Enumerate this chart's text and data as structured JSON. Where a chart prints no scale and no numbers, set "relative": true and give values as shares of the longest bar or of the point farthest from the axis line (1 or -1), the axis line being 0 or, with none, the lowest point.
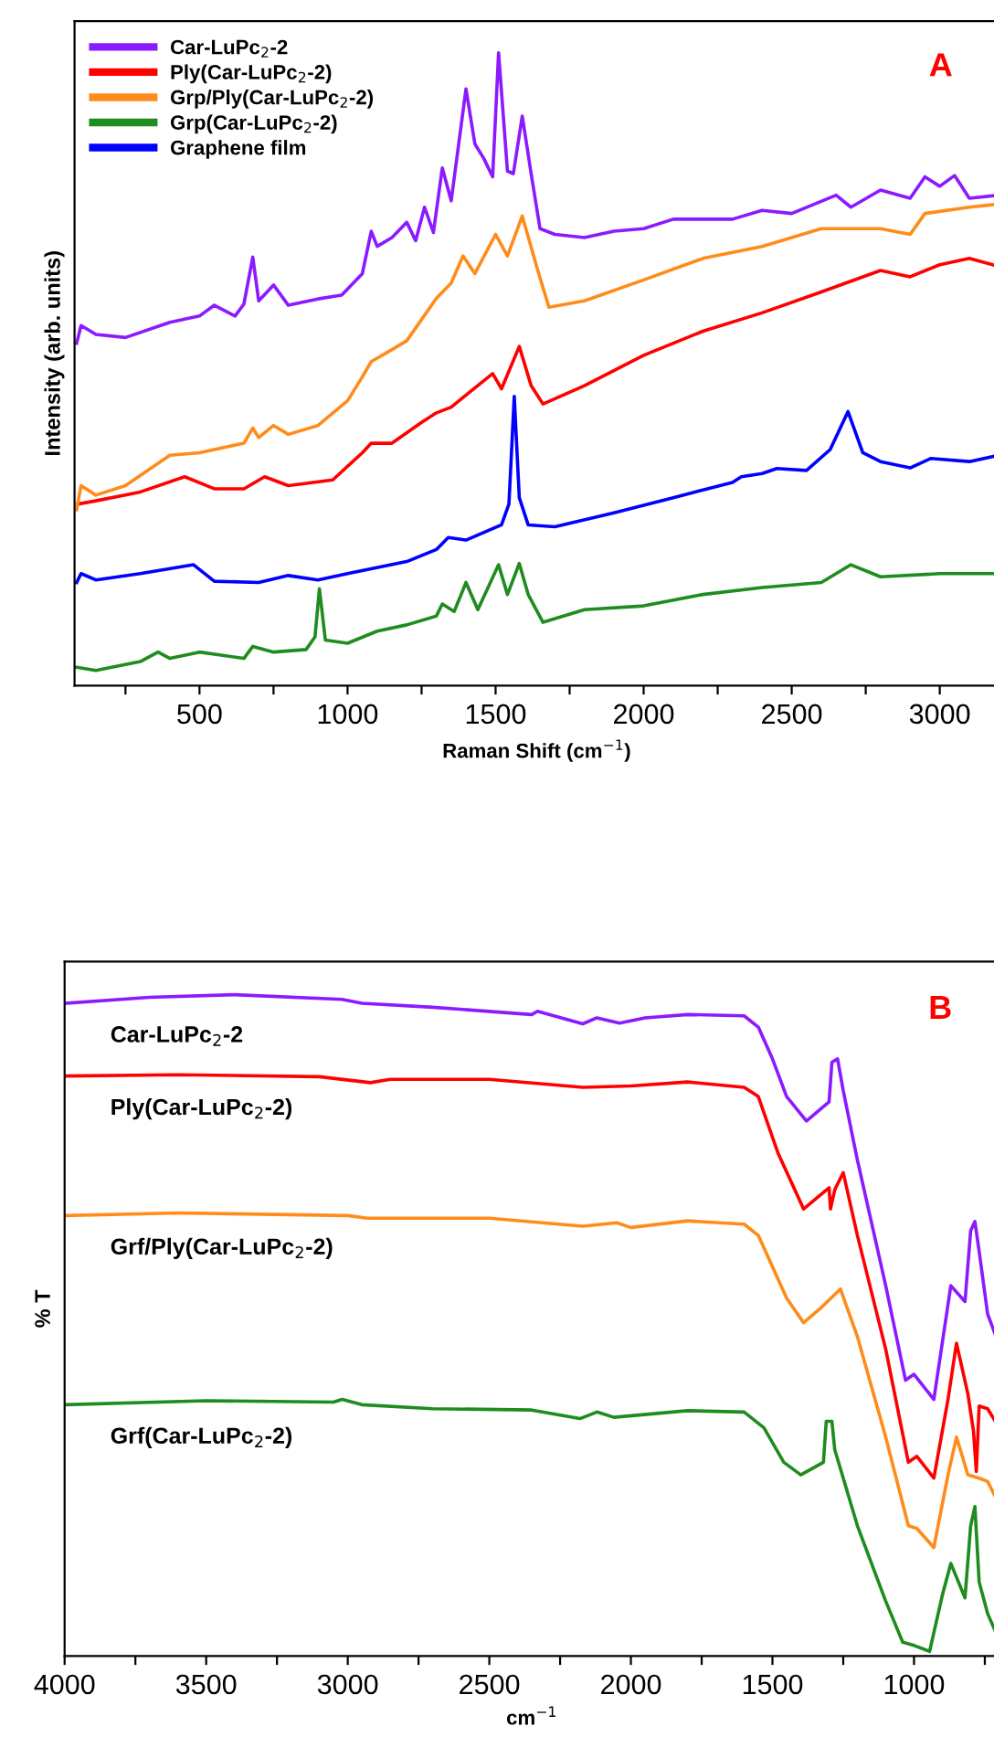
{
  "chart_data": [
    {
      "type": "line",
      "relative": true,
      "xlabel": "Raman Shift (cm$^{−1}$)",
      "ylabel": "Intensity (arb. units)",
      "annotations": [
        "A"
      ],
      "legend": "top left",
      "grid": false,
      "xlim": [
        78,
        3200
      ],
      "xticks": [
        {
          "value": 250,
          "label": null
        },
        500,
        {
          "value": 750,
          "label": null
        },
        1000,
        {
          "value": 1250,
          "label": null
        },
        1500,
        {
          "value": 1750,
          "label": null
        },
        2000,
        {
          "value": 2250,
          "label": null
        },
        2500,
        {
          "value": 2750,
          "label": null
        },
        3000
      ],
      "series": [
        {
          "name": "Car-LuPc$_{2}$-2",
          "color": "#8c1aff",
          "x": [
            85,
            100,
            150,
            250,
            400,
            500,
            550,
            620,
            650,
            680,
            700,
            750,
            800,
            900,
            980,
            1050,
            1080,
            1100,
            1150,
            1200,
            1230,
            1260,
            1290,
            1320,
            1350,
            1400,
            1430,
            1460,
            1490,
            1510,
            1540,
            1560,
            1590,
            1620,
            1650,
            1700,
            1800,
            1900,
            2000,
            2100,
            2200,
            2300,
            2400,
            2500,
            2650,
            2700,
            2800,
            2900,
            2950,
            3000,
            3050,
            3100,
            3200
          ],
          "values": [
            0.541,
            0.569,
            0.555,
            0.55,
            0.574,
            0.584,
            0.601,
            0.584,
            0.603,
            0.677,
            0.608,
            0.633,
            0.601,
            0.611,
            0.617,
            0.651,
            0.718,
            0.694,
            0.708,
            0.732,
            0.703,
            0.756,
            0.716,
            0.818,
            0.766,
            0.943,
            0.856,
            0.833,
            0.804,
            1.0,
            0.813,
            0.809,
            0.9,
            0.809,
            0.722,
            0.713,
            0.708,
            0.718,
            0.722,
            0.737,
            0.737,
            0.737,
            0.751,
            0.746,
            0.775,
            0.756,
            0.783,
            0.77,
            0.804,
            0.789,
            0.806,
            0.77,
            0.775
          ]
        },
        {
          "name": "Ply(Car-LuPc$_{2}$-2)",
          "color": "#ff0000",
          "x": [
            90,
            150,
            300,
            450,
            550,
            650,
            720,
            800,
            950,
            1050,
            1080,
            1150,
            1250,
            1300,
            1350,
            1400,
            1490,
            1520,
            1580,
            1620,
            1660,
            1800,
            2000,
            2200,
            2400,
            2600,
            2800,
            2900,
            3000,
            3100,
            3180
          ],
          "values": [
            0.287,
            0.292,
            0.306,
            0.33,
            0.311,
            0.311,
            0.33,
            0.316,
            0.325,
            0.368,
            0.383,
            0.383,
            0.416,
            0.431,
            0.44,
            0.459,
            0.493,
            0.469,
            0.536,
            0.474,
            0.445,
            0.474,
            0.522,
            0.56,
            0.589,
            0.622,
            0.656,
            0.646,
            0.665,
            0.675,
            0.665
          ]
        },
        {
          "name": "Grp/Ply(Car-LuPc$_{2}$-2)",
          "color": "#ff8c1a",
          "x": [
            85,
            100,
            150,
            250,
            400,
            500,
            650,
            680,
            700,
            750,
            800,
            900,
            1000,
            1050,
            1080,
            1150,
            1200,
            1300,
            1350,
            1390,
            1430,
            1500,
            1540,
            1590,
            1640,
            1680,
            1800,
            2000,
            2200,
            2400,
            2600,
            2800,
            2900,
            2950,
            3100,
            3200
          ],
          "values": [
            0.278,
            0.316,
            0.301,
            0.316,
            0.364,
            0.368,
            0.383,
            0.407,
            0.392,
            0.411,
            0.397,
            0.411,
            0.45,
            0.488,
            0.512,
            0.531,
            0.545,
            0.612,
            0.636,
            0.679,
            0.651,
            0.713,
            0.679,
            0.742,
            0.66,
            0.598,
            0.608,
            0.641,
            0.675,
            0.694,
            0.722,
            0.722,
            0.713,
            0.746,
            0.756,
            0.761
          ]
        },
        {
          "name": "Grp(Car-LuPc$_{2}$-2)",
          "color": "#1e8c1e",
          "x": [
            85,
            150,
            300,
            360,
            400,
            500,
            650,
            680,
            750,
            860,
            890,
            905,
            925,
            1000,
            1100,
            1200,
            1300,
            1320,
            1360,
            1400,
            1440,
            1510,
            1540,
            1580,
            1610,
            1660,
            1800,
            2000,
            2200,
            2400,
            2600,
            2700,
            2800,
            3000,
            3200
          ],
          "values": [
            0.029,
            0.024,
            0.038,
            0.053,
            0.043,
            0.053,
            0.043,
            0.062,
            0.053,
            0.057,
            0.077,
            0.153,
            0.072,
            0.067,
            0.086,
            0.096,
            0.11,
            0.129,
            0.117,
            0.163,
            0.12,
            0.191,
            0.144,
            0.193,
            0.144,
            0.1,
            0.12,
            0.126,
            0.144,
            0.155,
            0.163,
            0.191,
            0.172,
            0.177,
            0.177
          ]
        },
        {
          "name": "Graphene film",
          "color": "#0000ff",
          "x": [
            85,
            100,
            150,
            300,
            480,
            550,
            700,
            800,
            900,
            1000,
            1200,
            1300,
            1340,
            1400,
            1520,
            1545,
            1563,
            1580,
            1610,
            1700,
            1900,
            2100,
            2300,
            2330,
            2400,
            2450,
            2550,
            2630,
            2690,
            2740,
            2800,
            2900,
            2970,
            3100,
            3200
          ],
          "values": [
            0.163,
            0.177,
            0.167,
            0.177,
            0.191,
            0.165,
            0.163,
            0.174,
            0.167,
            0.177,
            0.196,
            0.215,
            0.234,
            0.23,
            0.254,
            0.287,
            0.457,
            0.297,
            0.254,
            0.251,
            0.273,
            0.297,
            0.321,
            0.33,
            0.335,
            0.343,
            0.34,
            0.373,
            0.433,
            0.368,
            0.354,
            0.344,
            0.359,
            0.354,
            0.364
          ]
        }
      ]
    },
    {
      "type": "line",
      "relative": true,
      "xlabel": "cm$^{−1}$",
      "ylabel": "% T",
      "annotations": [
        "B"
      ],
      "grid": false,
      "xlim": [
        4000,
        700
      ],
      "xticks": [
        4000,
        {
          "value": 3750,
          "label": null
        },
        3500,
        {
          "value": 3250,
          "label": null
        },
        3000,
        {
          "value": 2750,
          "label": null
        },
        2500,
        {
          "value": 2250,
          "label": null
        },
        2000,
        {
          "value": 1750,
          "label": null
        },
        1500,
        {
          "value": 1250,
          "label": null
        },
        1000,
        {
          "value": 750,
          "label": null
        }
      ],
      "series": [
        {
          "name": "Car-LuPc$_{2}$-2",
          "color": "#8c1aff",
          "x": [
            4000,
            3700,
            3400,
            3020,
            2950,
            2700,
            2350,
            2330,
            2170,
            2120,
            2040,
            1950,
            1800,
            1600,
            1550,
            1500,
            1450,
            1380,
            1300,
            1290,
            1270,
            1250,
            1200,
            1100,
            1030,
            1000,
            930,
            870,
            820,
            800,
            785,
            770,
            740,
            706
          ],
          "values": [
            0.987,
            0.996,
            1.0,
            0.993,
            0.987,
            0.981,
            0.97,
            0.975,
            0.956,
            0.965,
            0.957,
            0.965,
            0.97,
            0.968,
            0.951,
            0.903,
            0.846,
            0.809,
            0.838,
            0.898,
            0.903,
            0.855,
            0.75,
            0.56,
            0.417,
            0.426,
            0.388,
            0.56,
            0.536,
            0.643,
            0.657,
            0.612,
            0.517,
            0.478
          ]
        },
        {
          "name": "Ply(Car-LuPc$_{2}$-2)",
          "color": "#ff0000",
          "x": [
            4000,
            3600,
            3100,
            2920,
            2850,
            2500,
            2170,
            2000,
            1800,
            1600,
            1550,
            1480,
            1390,
            1300,
            1295,
            1280,
            1250,
            1200,
            1100,
            1020,
            990,
            930,
            880,
            850,
            810,
            790,
            780,
            770,
            740,
            706
          ],
          "values": [
            0.877,
            0.879,
            0.876,
            0.867,
            0.872,
            0.872,
            0.86,
            0.862,
            0.868,
            0.86,
            0.846,
            0.76,
            0.676,
            0.708,
            0.676,
            0.705,
            0.731,
            0.636,
            0.464,
            0.293,
            0.302,
            0.269,
            0.388,
            0.473,
            0.397,
            0.34,
            0.279,
            0.378,
            0.374,
            0.35
          ]
        },
        {
          "name": "Grf/Ply(Car-LuPc$_{2}$-2)",
          "color": "#ff8c1a",
          "x": [
            4000,
            3600,
            3000,
            2930,
            2500,
            2170,
            2050,
            2000,
            1800,
            1600,
            1550,
            1450,
            1390,
            1330,
            1260,
            1200,
            1100,
            1020,
            990,
            930,
            880,
            850,
            810,
            770,
            740,
            706
          ],
          "values": [
            0.666,
            0.67,
            0.666,
            0.662,
            0.662,
            0.65,
            0.655,
            0.648,
            0.658,
            0.653,
            0.636,
            0.541,
            0.504,
            0.526,
            0.555,
            0.483,
            0.331,
            0.197,
            0.193,
            0.164,
            0.274,
            0.331,
            0.274,
            0.269,
            0.264,
            0.235
          ]
        },
        {
          "name": "Grf(Car-LuPc$_{2}$-2)",
          "color": "#1e8c1e",
          "x": [
            4000,
            3500,
            3050,
            3020,
            2950,
            2700,
            2350,
            2180,
            2120,
            2060,
            1800,
            1600,
            1530,
            1460,
            1400,
            1320,
            1310,
            1290,
            1280,
            1200,
            1100,
            1040,
            1000,
            945,
            900,
            870,
            820,
            800,
            785,
            770,
            740,
            706
          ],
          "values": [
            0.38,
            0.386,
            0.384,
            0.388,
            0.38,
            0.374,
            0.372,
            0.359,
            0.369,
            0.361,
            0.371,
            0.369,
            0.345,
            0.293,
            0.274,
            0.293,
            0.355,
            0.355,
            0.312,
            0.197,
            0.083,
            0.021,
            0.016,
            0.007,
            0.092,
            0.14,
            0.088,
            0.197,
            0.226,
            0.112,
            0.064,
            0.031
          ]
        }
      ]
    }
  ]
}
